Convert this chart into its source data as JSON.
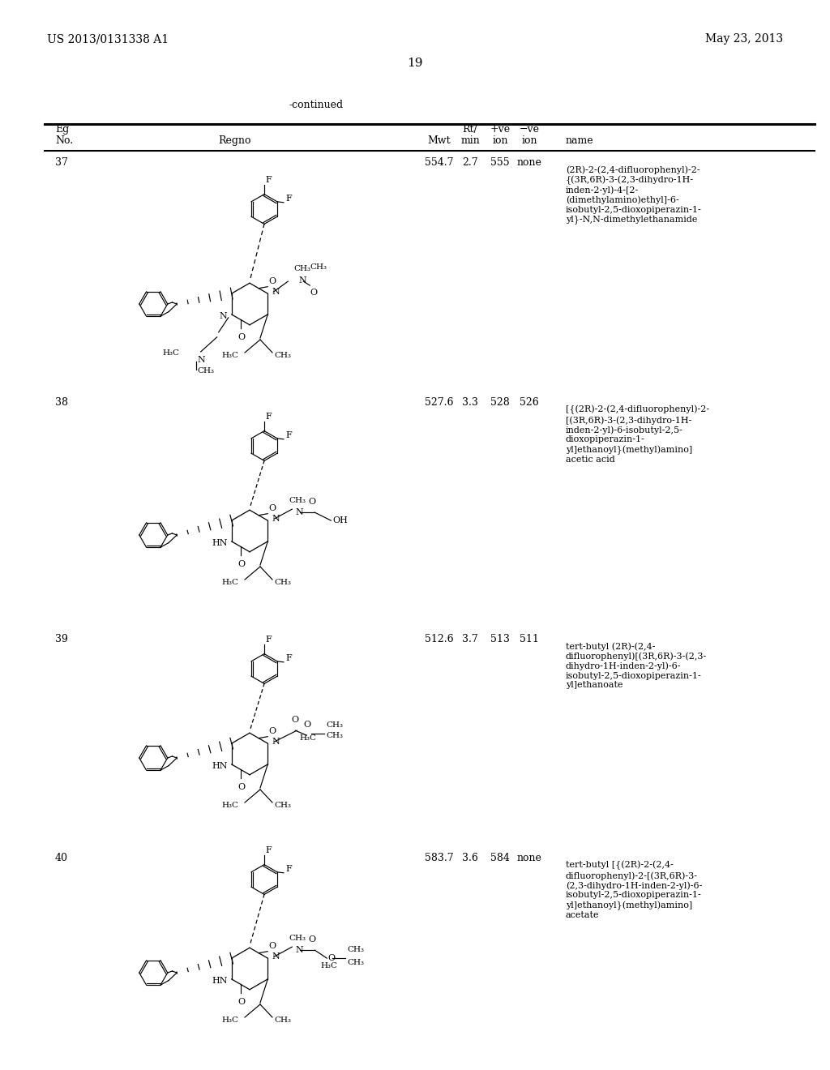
{
  "left_header": "US 2013/0131338 A1",
  "right_header": "May 23, 2013",
  "page_number": "19",
  "continued": "-continued",
  "col_headers_line1": [
    "Eg",
    "",
    "",
    "Rt/",
    "+ve",
    "-ve",
    ""
  ],
  "col_headers_line2": [
    "No.",
    "Regno",
    "Mwt",
    "min",
    "ion",
    "ion",
    "name"
  ],
  "rows": [
    {
      "eg": "37",
      "mwt": "554.7",
      "rt": "2.7",
      "plus": "555",
      "minus": "none",
      "name": "(2R)-2-(2,4-difluorophenyl)-2-\n{(3R,6R)-3-(2,3-dihydro-1H-\ninden-2-yl)-4-[2-\n(dimethylamino)ethyl]-6-\nisobutyl-2,5-dioxopiperazin-1-\nyl}-N,N-dimethylethanamide"
    },
    {
      "eg": "38",
      "mwt": "527.6",
      "rt": "3.3",
      "plus": "528",
      "minus": "526",
      "name": "[{(2R)-2-(2,4-difluorophenyl)-2-\n[(3R,6R)-3-(2,3-dihydro-1H-\ninden-2-yl)-6-isobutyl-2,5-\ndioxopiperazin-1-\nyl]ethanoyl}(methyl)amino]\nacetic acid"
    },
    {
      "eg": "39",
      "mwt": "512.6",
      "rt": "3.7",
      "plus": "513",
      "minus": "511",
      "name": "tert-butyl (2R)-(2,4-\ndifluorophenyl)[(3R,6R)-3-(2,3-\ndihydro-1H-inden-2-yl)-6-\nisobutyl-2,5-dioxopiperazin-1-\nyl]ethanoate"
    },
    {
      "eg": "40",
      "mwt": "583.7",
      "rt": "3.6",
      "plus": "584",
      "minus": "none",
      "name": "tert-butyl [{(2R)-2-(2,4-\ndifluorophenyl)-2-[(3R,6R)-3-\n(2,3-dihydro-1H-inden-2-yl)-6-\nisobutyl-2,5-dioxopiperazin-1-\nyl]ethanoyl}(methyl)amino]\nacetate"
    }
  ]
}
